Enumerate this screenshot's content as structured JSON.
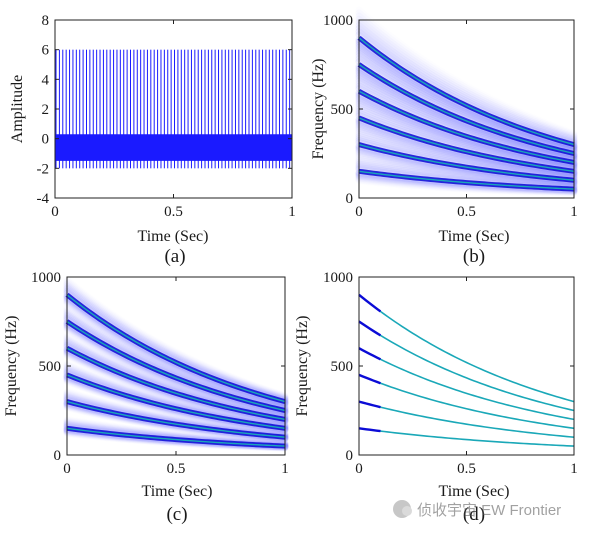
{
  "chart_data": [
    {
      "id": "a",
      "type": "line",
      "panel_label": "(a)",
      "xlabel": "Time (Sec)",
      "ylabel": "Amplitude",
      "xlim": [
        0,
        1
      ],
      "ylim": [
        -4,
        8
      ],
      "x_ticks": [
        "0",
        "0.5",
        "1"
      ],
      "y_ticks": [
        "-4",
        "-2",
        "0",
        "2",
        "4",
        "6",
        "8"
      ],
      "x_tick_values": [
        0,
        0.5,
        1
      ],
      "y_tick_values": [
        -4,
        -2,
        0,
        2,
        4,
        6,
        8
      ],
      "color": "#1a1aff",
      "signal": {
        "dense_band": [
          -1.5,
          0.3
        ],
        "peak_level": 6,
        "trough_level": -2,
        "periodic_peaks": 70
      }
    },
    {
      "id": "b",
      "type": "line",
      "panel_label": "(b)",
      "xlabel": "Time (Sec)",
      "ylabel": "Frequency (Hz)",
      "xlim": [
        0,
        1
      ],
      "ylim": [
        0,
        1000
      ],
      "x_ticks": [
        "0",
        "0.5",
        "1"
      ],
      "y_ticks": [
        "0",
        "500",
        "1000"
      ],
      "x_tick_values": [
        0,
        0.5,
        1
      ],
      "y_tick_values": [
        0,
        500,
        1000
      ],
      "spread": "high",
      "series": [
        {
          "start": 150,
          "end": 50
        },
        {
          "start": 300,
          "end": 100
        },
        {
          "start": 450,
          "end": 150
        },
        {
          "start": 600,
          "end": 200
        },
        {
          "start": 750,
          "end": 250
        },
        {
          "start": 900,
          "end": 300
        }
      ]
    },
    {
      "id": "c",
      "type": "line",
      "panel_label": "(c)",
      "xlabel": "Time (Sec)",
      "ylabel": "Frequency (Hz)",
      "xlim": [
        0,
        1
      ],
      "ylim": [
        0,
        1000
      ],
      "x_ticks": [
        "0",
        "0.5",
        "1"
      ],
      "y_ticks": [
        "0",
        "500",
        "1000"
      ],
      "x_tick_values": [
        0,
        0.5,
        1
      ],
      "y_tick_values": [
        0,
        500,
        1000
      ],
      "spread": "medium",
      "series": [
        {
          "start": 150,
          "end": 50
        },
        {
          "start": 300,
          "end": 100
        },
        {
          "start": 450,
          "end": 150
        },
        {
          "start": 600,
          "end": 200
        },
        {
          "start": 750,
          "end": 250
        },
        {
          "start": 900,
          "end": 300
        }
      ]
    },
    {
      "id": "d",
      "type": "line",
      "panel_label": "(d)",
      "xlabel": "Time (Sec)",
      "ylabel": "Frequency (Hz)",
      "xlim": [
        0,
        1
      ],
      "ylim": [
        0,
        1000
      ],
      "x_ticks": [
        "0",
        "0.5",
        "1"
      ],
      "y_ticks": [
        "0",
        "500",
        "1000"
      ],
      "x_tick_values": [
        0,
        0.5,
        1
      ],
      "y_tick_values": [
        0,
        500,
        1000
      ],
      "spread": "none",
      "series": [
        {
          "start": 150,
          "end": 50
        },
        {
          "start": 300,
          "end": 100
        },
        {
          "start": 450,
          "end": 150
        },
        {
          "start": 600,
          "end": 200
        },
        {
          "start": 750,
          "end": 250
        },
        {
          "start": 900,
          "end": 300
        }
      ]
    }
  ],
  "watermark": {
    "text": "侦收宇宙 EW Frontier",
    "icon": "wechat-icon"
  },
  "colors": {
    "ridge": "#0b0bd6",
    "ridge_core": "#1aa8b8",
    "spread": "#3a3aff",
    "signal": "#1a1aff",
    "axis": "#222222"
  }
}
